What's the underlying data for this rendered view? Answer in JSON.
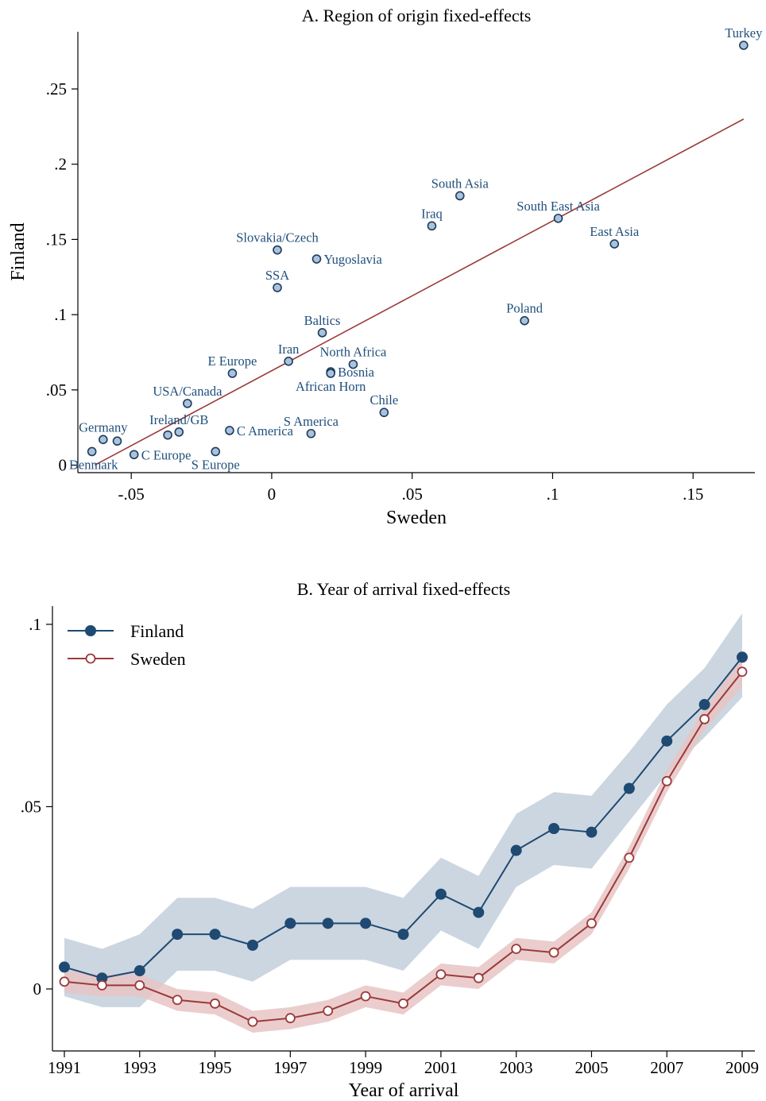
{
  "chart_data": [
    {
      "type": "scatter",
      "title": "A. Region of origin fixed-effects",
      "xlabel": "Sweden",
      "ylabel": "Finland",
      "xlim": [
        -0.069,
        0.172
      ],
      "ylim": [
        -0.005,
        0.288
      ],
      "xticks": [
        -0.05,
        0,
        0.05,
        0.1,
        0.15
      ],
      "xtick_labels": [
        "-.05",
        "0",
        ".05",
        ".1",
        ".15"
      ],
      "yticks": [
        0,
        0.05,
        0.1,
        0.15,
        0.2,
        0.25
      ],
      "ytick_labels": [
        "0",
        ".05",
        ".1",
        ".15",
        ".2",
        ".25"
      ],
      "grid": false,
      "point_color": "#a9c3de",
      "point_edge": "#1f3b5a",
      "fit_line": {
        "color": "#9b3a3a",
        "x": [
          -0.063,
          0.168
        ],
        "y": [
          0.0,
          0.23
        ]
      },
      "points": [
        {
          "label": "Turkey",
          "x": 0.168,
          "y": 0.279,
          "pos": "above"
        },
        {
          "label": "South Asia",
          "x": 0.067,
          "y": 0.179,
          "pos": "above"
        },
        {
          "label": "South East Asia",
          "x": 0.102,
          "y": 0.164,
          "pos": "above"
        },
        {
          "label": "Iraq",
          "x": 0.057,
          "y": 0.159,
          "pos": "above"
        },
        {
          "label": "East Asia",
          "x": 0.122,
          "y": 0.147,
          "pos": "above"
        },
        {
          "label": "Slovakia/Czech",
          "x": 0.002,
          "y": 0.143,
          "pos": "above"
        },
        {
          "label": "Yugoslavia",
          "x": 0.016,
          "y": 0.137,
          "pos": "right"
        },
        {
          "label": "SSA",
          "x": 0.002,
          "y": 0.118,
          "pos": "above"
        },
        {
          "label": "Poland",
          "x": 0.09,
          "y": 0.096,
          "pos": "above"
        },
        {
          "label": "Baltics",
          "x": 0.018,
          "y": 0.088,
          "pos": "above"
        },
        {
          "label": "Iran",
          "x": 0.006,
          "y": 0.069,
          "pos": "above"
        },
        {
          "label": "North Africa",
          "x": 0.029,
          "y": 0.067,
          "pos": "above"
        },
        {
          "label": "Bosnia",
          "x": 0.021,
          "y": 0.062,
          "pos": "right"
        },
        {
          "label": "African Horn",
          "x": 0.021,
          "y": 0.061,
          "pos": "below"
        },
        {
          "label": "E Europe",
          "x": -0.014,
          "y": 0.061,
          "pos": "above"
        },
        {
          "label": "USA/Canada",
          "x": -0.03,
          "y": 0.041,
          "pos": "above"
        },
        {
          "label": "Chile",
          "x": 0.04,
          "y": 0.035,
          "pos": "above"
        },
        {
          "label": "Ireland/GB",
          "x": -0.033,
          "y": 0.022,
          "pos": "above"
        },
        {
          "label": "",
          "x": -0.037,
          "y": 0.02,
          "pos": "none"
        },
        {
          "label": "C America",
          "x": -0.015,
          "y": 0.023,
          "pos": "right"
        },
        {
          "label": "S America",
          "x": 0.014,
          "y": 0.021,
          "pos": "above"
        },
        {
          "label": "Germany",
          "x": -0.06,
          "y": 0.017,
          "pos": "above"
        },
        {
          "label": "",
          "x": -0.055,
          "y": 0.016,
          "pos": "none"
        },
        {
          "label": "S Europe",
          "x": -0.02,
          "y": 0.009,
          "pos": "below"
        },
        {
          "label": "C Europe",
          "x": -0.049,
          "y": 0.007,
          "pos": "right"
        },
        {
          "label": "Denmark",
          "x": -0.064,
          "y": 0.009,
          "pos": "below"
        }
      ]
    },
    {
      "type": "line",
      "title": "B. Year of arrival fixed-effects",
      "xlabel": "Year of arrival",
      "ylabel": "",
      "xlim": [
        1991,
        2009
      ],
      "ylim": [
        -0.017,
        0.105
      ],
      "xticks": [
        1991,
        1993,
        1995,
        1997,
        1999,
        2001,
        2003,
        2005,
        2007,
        2009
      ],
      "xtick_labels": [
        "1991",
        "1993",
        "1995",
        "1997",
        "1999",
        "2001",
        "2003",
        "2005",
        "2007",
        "2009"
      ],
      "yticks": [
        0,
        0.05,
        0.1
      ],
      "ytick_labels": [
        "0",
        ".05",
        ".1"
      ],
      "grid": false,
      "legend": "top-left",
      "x": [
        1991,
        1992,
        1993,
        1994,
        1995,
        1996,
        1997,
        1998,
        1999,
        2000,
        2001,
        2002,
        2003,
        2004,
        2005,
        2006,
        2007,
        2008,
        2009
      ],
      "series": [
        {
          "name": "Finland",
          "color": "#1f4a72",
          "band_color": "#c3cfdc",
          "marker": "filled",
          "values": [
            0.006,
            0.003,
            0.005,
            0.015,
            0.015,
            0.012,
            0.018,
            0.018,
            0.018,
            0.015,
            0.026,
            0.021,
            0.038,
            0.044,
            0.043,
            0.055,
            0.068,
            0.078,
            0.091
          ],
          "ci_low": [
            -0.002,
            -0.005,
            -0.005,
            0.005,
            0.005,
            0.002,
            0.008,
            0.008,
            0.008,
            0.005,
            0.016,
            0.011,
            0.028,
            0.034,
            0.033,
            0.046,
            0.059,
            0.069,
            0.08
          ],
          "ci_high": [
            0.014,
            0.011,
            0.015,
            0.025,
            0.025,
            0.022,
            0.028,
            0.028,
            0.028,
            0.025,
            0.036,
            0.031,
            0.048,
            0.054,
            0.053,
            0.065,
            0.078,
            0.088,
            0.103
          ]
        },
        {
          "name": "Sweden",
          "color": "#9b3a3a",
          "band_color": "#e8c4c4",
          "marker": "hollow",
          "values": [
            0.002,
            0.001,
            0.001,
            -0.003,
            -0.004,
            -0.009,
            -0.008,
            -0.006,
            -0.002,
            -0.004,
            0.004,
            0.003,
            0.011,
            0.01,
            0.018,
            0.036,
            0.057,
            0.074,
            0.087
          ],
          "ci_low": [
            -0.001,
            -0.002,
            -0.002,
            -0.006,
            -0.007,
            -0.012,
            -0.011,
            -0.009,
            -0.005,
            -0.007,
            0.001,
            0.0,
            0.008,
            0.007,
            0.015,
            0.033,
            0.054,
            0.071,
            0.083
          ],
          "ci_high": [
            0.005,
            0.004,
            0.004,
            0.0,
            -0.001,
            -0.006,
            -0.005,
            -0.003,
            0.001,
            -0.001,
            0.007,
            0.006,
            0.014,
            0.013,
            0.021,
            0.039,
            0.06,
            0.077,
            0.091
          ]
        }
      ]
    }
  ]
}
